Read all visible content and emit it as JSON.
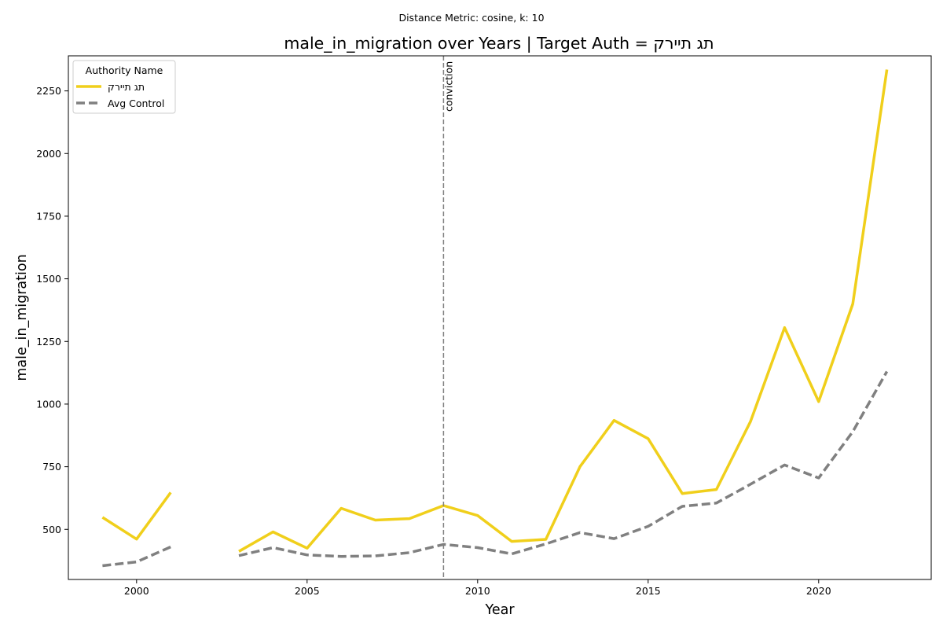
{
  "figure": {
    "suptitle": "Distance Metric: cosine, k: 10"
  },
  "chart_data": {
    "type": "line",
    "title": "male_in_migration over Years | Target Auth = תג תיירק",
    "xlabel": "Year",
    "ylabel": "male_in_migration",
    "xlim": [
      1998,
      2023.3
    ],
    "ylim": [
      300,
      2390
    ],
    "x_ticks": [
      2000,
      2005,
      2010,
      2015,
      2020
    ],
    "y_ticks": [
      500,
      750,
      1000,
      1250,
      1500,
      1750,
      2000,
      2250
    ],
    "grid": false,
    "legend": {
      "title": "Authority Name",
      "placement": "top-left"
    },
    "x": [
      1999,
      2000,
      2001,
      2002,
      2003,
      2004,
      2005,
      2006,
      2007,
      2008,
      2009,
      2010,
      2011,
      2012,
      2013,
      2014,
      2015,
      2016,
      2017,
      2018,
      2019,
      2020,
      2021,
      2022
    ],
    "series": [
      {
        "name": "תג תיירק",
        "color": "#f0cf1b",
        "dash": "solid",
        "values": [
          548,
          461,
          647,
          null,
          412,
          490,
          425,
          584,
          537,
          543,
          595,
          555,
          452,
          460,
          750,
          935,
          862,
          643,
          659,
          930,
          1305,
          1010,
          1400,
          2335
        ]
      },
      {
        "name": "Avg Control",
        "color": "#808080",
        "dash": "dashed",
        "values": [
          355,
          370,
          430,
          null,
          395,
          427,
          398,
          392,
          394,
          407,
          440,
          427,
          402,
          442,
          487,
          463,
          512,
          592,
          605,
          680,
          757,
          705,
          890,
          1130
        ]
      }
    ],
    "annotations": [
      {
        "type": "vline",
        "x": 2009,
        "label": "conviction",
        "color": "#808080"
      }
    ]
  }
}
